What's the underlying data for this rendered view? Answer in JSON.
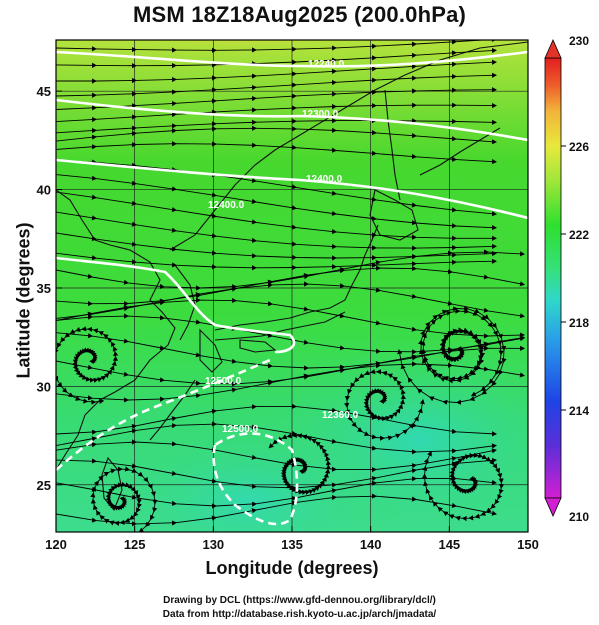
{
  "title": "MSM 18Z18Aug2025 (200.0hPa)",
  "x_axis": {
    "label": "Longitude (degrees)",
    "ticks": [
      "120",
      "125",
      "130",
      "135",
      "140",
      "145",
      "150"
    ]
  },
  "y_axis": {
    "label": "Latitude  (degrees)",
    "ticks": [
      "25",
      "30",
      "35",
      "40",
      "45"
    ]
  },
  "colorbar": {
    "ticks": [
      "210",
      "214",
      "218",
      "222",
      "226",
      "230"
    ],
    "min": 210,
    "max": 230,
    "colors": [
      "#d21fd2",
      "#5a2fd8",
      "#1e44e6",
      "#2a9ee8",
      "#2fd8c9",
      "#35e07a",
      "#2ee02e",
      "#9fe63a",
      "#e8e83c",
      "#f3b33a",
      "#ee5b2a",
      "#e21f1f"
    ]
  },
  "contour_labels": [
    "12240.0",
    "12300.0",
    "12400.0",
    "12400.0",
    "12500.0",
    "12500.0",
    "12360.0"
  ],
  "credits": {
    "line1": "Drawing by DCL (https://www.gfd-dennou.org/library/dcl/)",
    "line2": "Data from http://database.rish.kyoto-u.ac.jp/arch/jmadata/"
  }
}
